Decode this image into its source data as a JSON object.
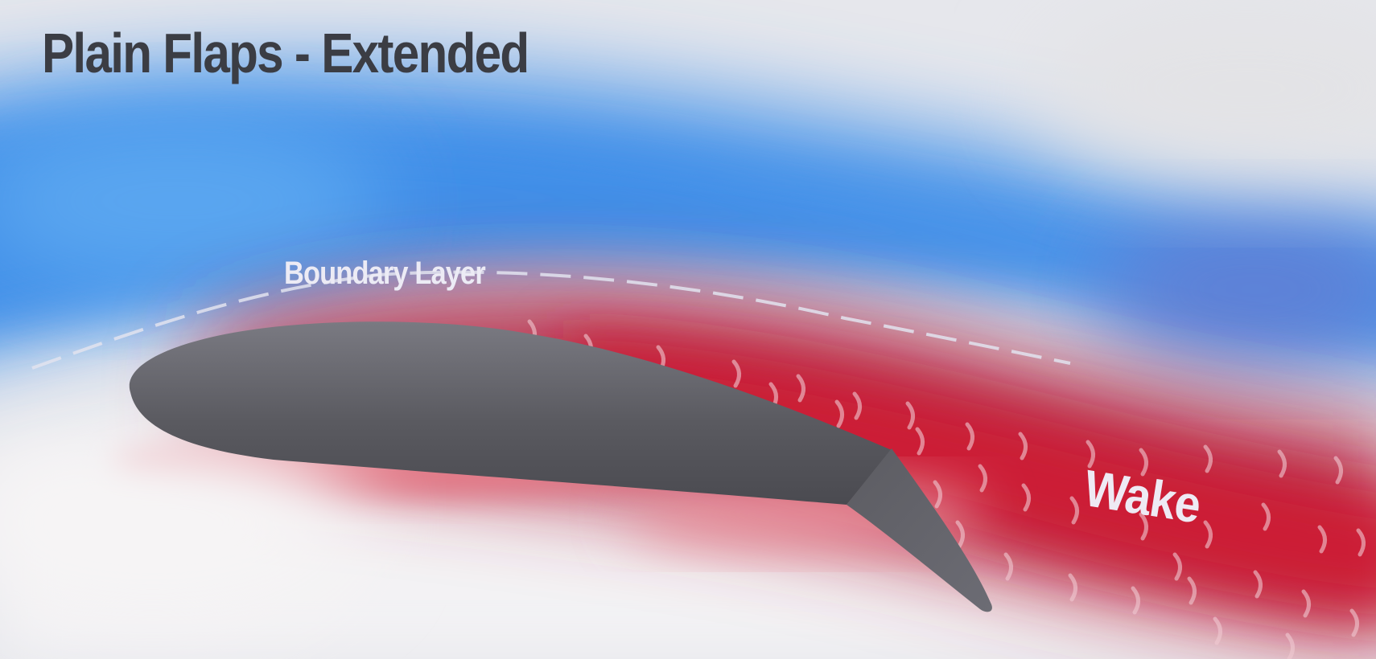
{
  "title": "Plain Flaps - Extended",
  "labels": {
    "boundary_layer": "Boundary Layer",
    "wake": "Wake"
  },
  "colors": {
    "background": "#e9eaee",
    "airflow_blue": "#3f8ee8",
    "wake_red": "#c81f35",
    "airfoil": "#58585e",
    "title_text": "#3b3d44",
    "label_text": "#ecebf5"
  },
  "icons": {
    "turbulence_mark": "crescent-swirl"
  }
}
